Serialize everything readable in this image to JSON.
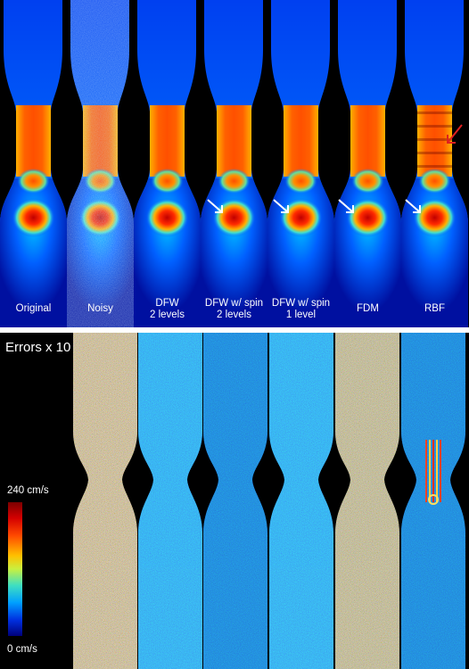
{
  "top": {
    "columns": [
      {
        "line1": "Original",
        "line2": ""
      },
      {
        "line1": "Noisy",
        "line2": ""
      },
      {
        "line1": "DFW",
        "line2": "2 levels"
      },
      {
        "line1": "DFW w/ spin",
        "line2": "2 levels"
      },
      {
        "line1": "DFW w/ spin",
        "line2": "1 level"
      },
      {
        "line1": "FDM",
        "line2": ""
      },
      {
        "line1": "RBF",
        "line2": ""
      }
    ]
  },
  "bottom": {
    "title": "Errors x 10",
    "colorbar_max": "240 cm/s",
    "colorbar_min": "0 cm/s"
  },
  "colors": {
    "white_arrow": "#ffffff",
    "red_arrow": "#e02020"
  }
}
